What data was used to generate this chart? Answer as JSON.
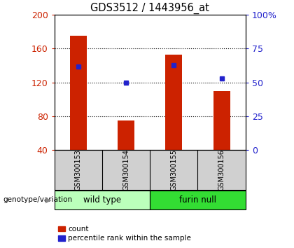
{
  "title": "GDS3512 / 1443956_at",
  "samples": [
    "GSM300153",
    "GSM300154",
    "GSM300155",
    "GSM300156"
  ],
  "counts": [
    175,
    75,
    153,
    110
  ],
  "percentiles": [
    62,
    50,
    63,
    53
  ],
  "ylim_left": [
    40,
    200
  ],
  "ylim_right": [
    0,
    100
  ],
  "yticks_left": [
    40,
    80,
    120,
    160,
    200
  ],
  "yticks_right": [
    0,
    25,
    50,
    75,
    100
  ],
  "ytick_labels_right": [
    "0",
    "25",
    "50",
    "75",
    "100%"
  ],
  "bar_color": "#cc2200",
  "point_color": "#2222cc",
  "groups": [
    {
      "label": "wild type",
      "samples": [
        0,
        1
      ],
      "color": "#bbffbb"
    },
    {
      "label": "furin null",
      "samples": [
        2,
        3
      ],
      "color": "#33dd33"
    }
  ],
  "group_label": "genotype/variation",
  "legend_count_label": "count",
  "legend_pct_label": "percentile rank within the sample",
  "bar_width": 0.35,
  "sample_box_color": "#d0d0d0",
  "plot_bg_color": "#ffffff",
  "left_tick_color": "#cc2200",
  "right_tick_color": "#2222cc",
  "dotted_lines": [
    80,
    120,
    160
  ]
}
